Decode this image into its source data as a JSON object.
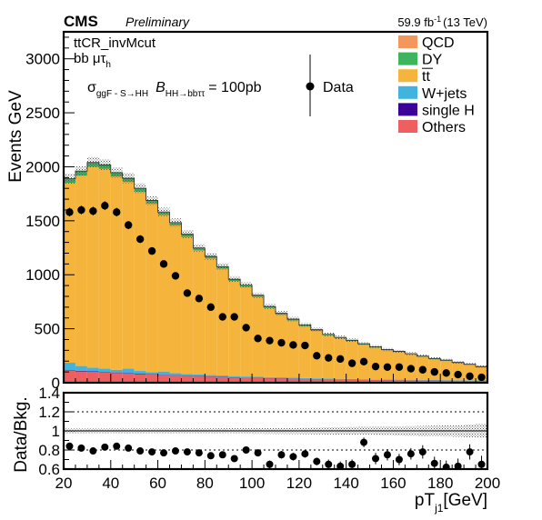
{
  "header": {
    "experiment": "CMS",
    "status": "Preliminary",
    "lumi_value": "59.9 fb",
    "lumi_exp": "-1",
    "energy": "(13 TeV)"
  },
  "annotations": {
    "region": "ttCR_invMcut",
    "channel_main": "bb μτ",
    "channel_sub": "h",
    "xsec_sym": "σ",
    "xsec_sub": "ggF - S→HH",
    "br_sym": "B",
    "br_sub": "HH→bbττ",
    "xsec_value": "= 100pb"
  },
  "legend": {
    "items": [
      {
        "label": "QCD",
        "color": "#f4975d"
      },
      {
        "label": "DY",
        "color": "#3cb55c"
      },
      {
        "label": "tt",
        "color": "#f5b43c",
        "overline": true
      },
      {
        "label": "W+jets",
        "color": "#40b4dc"
      },
      {
        "label": "single H",
        "color": "#3c0098"
      },
      {
        "label": "Others",
        "color": "#ee6060"
      }
    ],
    "data_label": "Data"
  },
  "chart_data": [
    {
      "type": "bar",
      "stacked": true,
      "xlabel_main": "pT",
      "xlabel_sub": "j1",
      "xlabel_unit": "[GeV]",
      "ylabel": "Events GeV",
      "xlim": [
        20,
        200
      ],
      "ylim": [
        0,
        3250
      ],
      "xticks": [
        20,
        40,
        60,
        80,
        100,
        120,
        140,
        160,
        180,
        200
      ],
      "yticks": [
        0,
        500,
        1000,
        1500,
        2000,
        2500,
        3000
      ],
      "x_bin_edges": [
        20,
        25,
        30,
        35,
        40,
        45,
        50,
        55,
        60,
        65,
        70,
        75,
        80,
        85,
        90,
        95,
        100,
        105,
        110,
        115,
        120,
        125,
        130,
        135,
        140,
        145,
        150,
        155,
        160,
        165,
        170,
        175,
        180,
        185,
        190,
        195,
        200
      ],
      "series": [
        {
          "name": "Others",
          "values": [
            110,
            105,
            100,
            95,
            90,
            85,
            80,
            75,
            70,
            66,
            62,
            58,
            55,
            52,
            48,
            45,
            42,
            40,
            38,
            36,
            34,
            32,
            30,
            28,
            27,
            25,
            24,
            23,
            22,
            21,
            20,
            19,
            18,
            17,
            16,
            15
          ]
        },
        {
          "name": "single H",
          "values": [
            5,
            5,
            5,
            5,
            5,
            5,
            4,
            4,
            4,
            4,
            4,
            4,
            3,
            3,
            3,
            3,
            3,
            3,
            3,
            3,
            2,
            2,
            2,
            2,
            2,
            2,
            2,
            2,
            2,
            2,
            2,
            2,
            2,
            2,
            2,
            2
          ]
        },
        {
          "name": "W+jets",
          "values": [
            70,
            45,
            35,
            30,
            25,
            40,
            25,
            20,
            30,
            18,
            15,
            14,
            13,
            12,
            11,
            10,
            10,
            9,
            9,
            8,
            8,
            7,
            7,
            6,
            6,
            6,
            5,
            5,
            5,
            5,
            4,
            4,
            4,
            4,
            4,
            4
          ]
        },
        {
          "name": "tt",
          "values": [
            1665,
            1765,
            1860,
            1850,
            1790,
            1730,
            1660,
            1560,
            1450,
            1370,
            1270,
            1150,
            1080,
            990,
            880,
            830,
            740,
            640,
            580,
            530,
            480,
            440,
            400,
            375,
            350,
            320,
            295,
            270,
            255,
            235,
            215,
            195,
            180,
            160,
            145,
            125
          ]
        },
        {
          "name": "DY",
          "values": [
            40,
            40,
            40,
            38,
            36,
            34,
            32,
            30,
            28,
            26,
            24,
            22,
            20,
            18,
            17,
            16,
            15,
            14,
            13,
            12,
            11,
            10,
            9,
            9,
            8,
            8,
            7,
            7,
            6,
            6,
            6,
            5,
            5,
            5,
            4,
            4
          ]
        },
        {
          "name": "QCD",
          "values": [
            0,
            0,
            0,
            0,
            0,
            0,
            0,
            0,
            0,
            0,
            0,
            0,
            0,
            0,
            0,
            0,
            0,
            0,
            0,
            0,
            0,
            0,
            0,
            0,
            0,
            0,
            0,
            0,
            0,
            0,
            0,
            0,
            0,
            0,
            0,
            0
          ]
        }
      ],
      "data": {
        "name": "Data",
        "x": [
          22.5,
          27.5,
          32.5,
          37.5,
          42.5,
          47.5,
          52.5,
          57.5,
          62.5,
          67.5,
          72.5,
          77.5,
          82.5,
          87.5,
          92.5,
          97.5,
          102.5,
          107.5,
          112.5,
          117.5,
          122.5,
          127.5,
          132.5,
          137.5,
          142.5,
          147.5,
          152.5,
          157.5,
          162.5,
          167.5,
          172.5,
          177.5,
          182.5,
          187.5,
          192.5,
          197.5
        ],
        "y": [
          1580,
          1600,
          1590,
          1640,
          1580,
          1460,
          1330,
          1220,
          1100,
          990,
          830,
          780,
          700,
          610,
          610,
          510,
          410,
          390,
          370,
          350,
          345,
          250,
          230,
          220,
          180,
          195,
          150,
          145,
          145,
          130,
          120,
          100,
          90,
          75,
          60,
          50
        ]
      }
    },
    {
      "type": "scatter",
      "xlabel_main": "pT",
      "xlabel_sub": "j1",
      "xlabel_unit": "[GeV]",
      "ylabel": "Data/Bkg.",
      "xlim": [
        20,
        200
      ],
      "ylim": [
        0.6,
        1.4
      ],
      "xticks": [
        20,
        40,
        60,
        80,
        100,
        120,
        140,
        160,
        180,
        200
      ],
      "yticks": [
        0.6,
        0.8,
        1,
        1.2,
        1.4
      ],
      "reference_lines": [
        0.8,
        1.0,
        1.2
      ],
      "x": [
        22.5,
        27.5,
        32.5,
        37.5,
        42.5,
        47.5,
        52.5,
        57.5,
        62.5,
        67.5,
        72.5,
        77.5,
        82.5,
        87.5,
        92.5,
        97.5,
        102.5,
        107.5,
        112.5,
        117.5,
        122.5,
        127.5,
        132.5,
        137.5,
        142.5,
        147.5,
        152.5,
        157.5,
        162.5,
        167.5,
        172.5,
        177.5,
        182.5,
        187.5,
        192.5,
        197.5
      ],
      "y": [
        0.84,
        0.82,
        0.79,
        0.83,
        0.84,
        0.82,
        0.79,
        0.78,
        0.77,
        0.79,
        0.78,
        0.77,
        0.74,
        0.75,
        0.71,
        0.8,
        0.77,
        0.65,
        0.75,
        0.73,
        0.76,
        0.68,
        0.65,
        0.63,
        0.65,
        0.88,
        0.71,
        0.75,
        0.7,
        0.76,
        0.78,
        0.66,
        0.62,
        0.63,
        0.78,
        0.65
      ],
      "yerr": [
        0.02,
        0.02,
        0.02,
        0.02,
        0.02,
        0.02,
        0.02,
        0.02,
        0.02,
        0.02,
        0.02,
        0.02,
        0.03,
        0.03,
        0.03,
        0.03,
        0.03,
        0.04,
        0.04,
        0.04,
        0.04,
        0.04,
        0.05,
        0.05,
        0.05,
        0.05,
        0.06,
        0.06,
        0.06,
        0.06,
        0.07,
        0.07,
        0.07,
        0.08,
        0.08,
        0.09
      ]
    }
  ]
}
